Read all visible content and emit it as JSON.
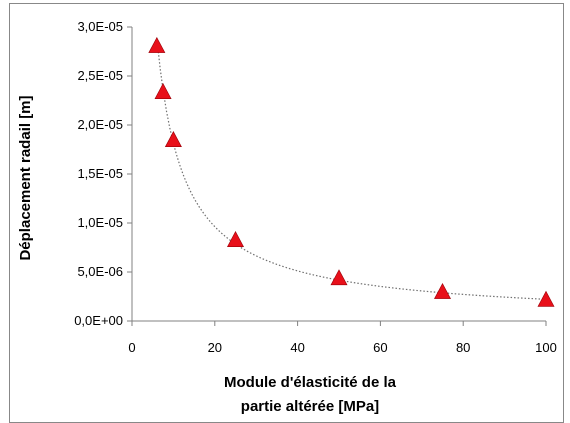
{
  "chart_data": {
    "type": "scatter",
    "title": "",
    "xlabel_lines": [
      "Module d'élasticité de la",
      "partie altérée [MPa]"
    ],
    "ylabel": "Déplacement radail  [m]",
    "xlim": [
      0,
      100
    ],
    "ylim": [
      0,
      3e-05
    ],
    "x_ticks": [
      0,
      20,
      40,
      60,
      80,
      100
    ],
    "x_tick_labels": [
      "0",
      "20",
      "40",
      "60",
      "80",
      "100"
    ],
    "y_ticks": [
      0,
      5e-06,
      1e-05,
      1.5e-05,
      2e-05,
      2.5e-05,
      3e-05
    ],
    "y_tick_labels": [
      "0,0E+00",
      "5,0E-06",
      "1,0E-05",
      "1,5E-05",
      "2,0E-05",
      "2,5E-05",
      "3,0E-05"
    ],
    "grid": false,
    "legend": "none",
    "marker": "triangle",
    "marker_color": "#e8101a",
    "trendline": "dotted",
    "trendline_color": "#707070",
    "series": [
      {
        "x": [
          6,
          7.5,
          10,
          25,
          50,
          75,
          100
        ],
        "y": [
          2.8e-05,
          2.33e-05,
          1.84e-05,
          8.2e-06,
          4.3e-06,
          2.9e-06,
          2.1e-06
        ]
      }
    ]
  }
}
